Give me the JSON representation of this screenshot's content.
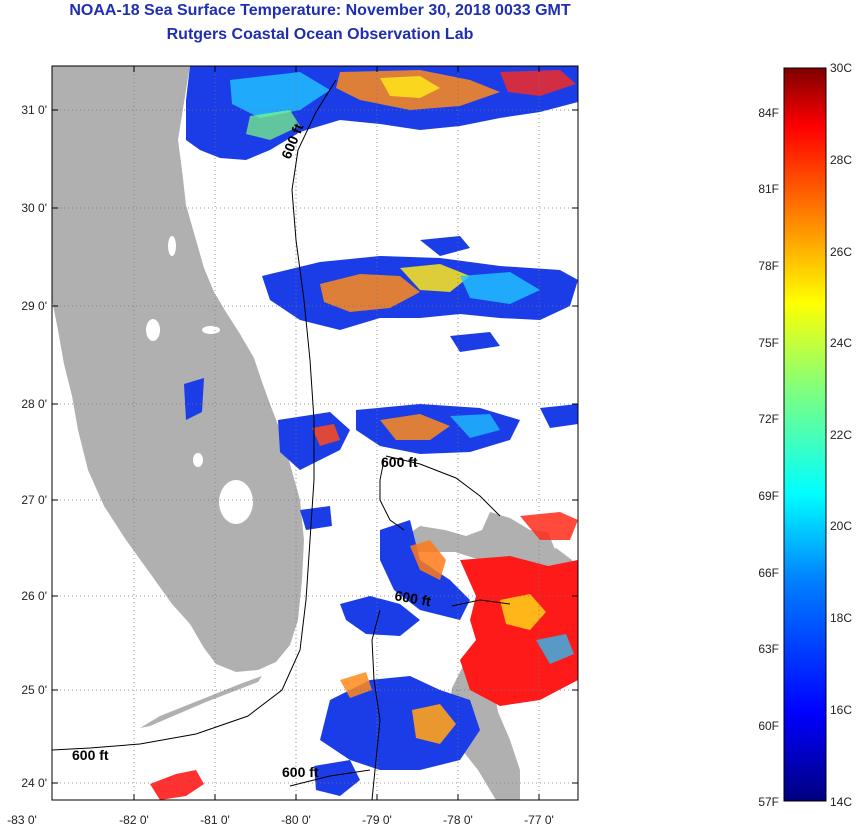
{
  "title": "NOAA-18 Sea Surface Temperature:  November 30, 2018 0033 GMT",
  "subtitle": "Rutgers Coastal Ocean Observation Lab",
  "lat_ticks": [
    "31 0'",
    "30 0'",
    "29 0'",
    "28 0'",
    "27 0'",
    "26 0'",
    "25 0'",
    "24 0'"
  ],
  "lon_ticks": [
    "-83 0'",
    "-82 0'",
    "-81 0'",
    "-80 0'",
    "-79 0'",
    "-78 0'",
    "-77 0'"
  ],
  "contour_labels": [
    "600 ft",
    "600 ft",
    "600 ft",
    "600 ft",
    "600 ft"
  ],
  "colorbar": {
    "celsius": [
      "30C",
      "28C",
      "26C",
      "24C",
      "22C",
      "20C",
      "18C",
      "16C",
      "14C"
    ],
    "fahrenheit": [
      "84F",
      "81F",
      "78F",
      "75F",
      "72F",
      "69F",
      "66F",
      "63F",
      "60F",
      "57F"
    ]
  },
  "colors": {
    "land": "#b0b0b0",
    "title": "#1f2fb0",
    "scale": [
      "#00007f",
      "#0000ff",
      "#007fff",
      "#00ffff",
      "#7fff7f",
      "#ffff00",
      "#ff7f00",
      "#ff0000",
      "#7f0000"
    ]
  }
}
